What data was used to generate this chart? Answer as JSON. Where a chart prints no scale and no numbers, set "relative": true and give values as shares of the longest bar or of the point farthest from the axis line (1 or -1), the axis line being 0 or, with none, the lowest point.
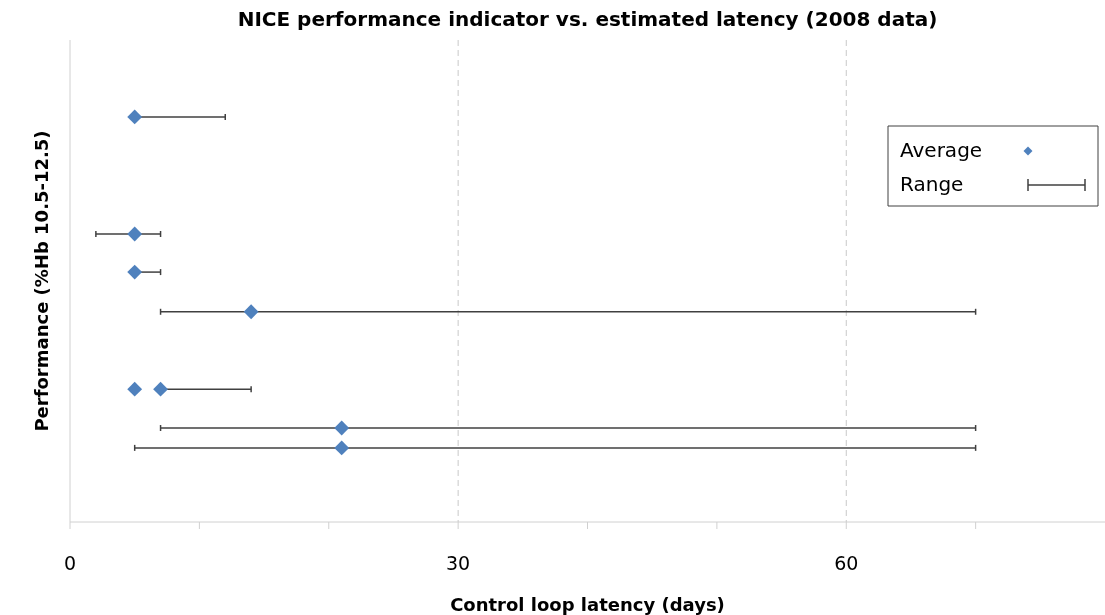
{
  "chart_data": {
    "type": "scatter",
    "title": "NICE performance indicator vs. estimated latency (2008 data)",
    "xlabel": "Control loop latency (days)",
    "ylabel": "Performance (%Hb 10.5-12.5)",
    "relative": true,
    "xlim": [
      0,
      80
    ],
    "xticks": [
      0,
      {
        "value": 10,
        "label": null
      },
      {
        "value": 20,
        "label": null
      },
      30,
      {
        "value": 40,
        "label": null
      },
      {
        "value": 50,
        "label": null
      },
      60,
      {
        "value": 70,
        "label": null
      }
    ],
    "grid": "x",
    "legend": "top right",
    "marker": "diamond",
    "tick_labels": "x",
    "annotations": [
      "Range"
    ],
    "series": [
      {
        "name": "Average",
        "color": "#4f81bd",
        "x": [
          5,
          5,
          5,
          14,
          5,
          7,
          21,
          21
        ],
        "values": [
          1.0,
          0.711,
          0.617,
          0.519,
          0.328,
          0.328,
          0.232,
          0.183
        ],
        "xerrors": [
          [
            5,
            12
          ],
          [
            2,
            7
          ],
          [
            5,
            7
          ],
          [
            7,
            70
          ],
          null,
          [
            7,
            14
          ],
          [
            7,
            70
          ],
          [
            5,
            70
          ]
        ]
      }
    ]
  }
}
